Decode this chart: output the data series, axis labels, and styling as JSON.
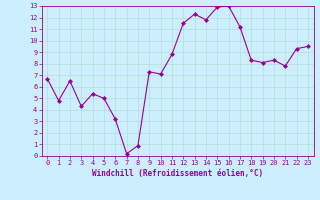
{
  "x_values": [
    0,
    1,
    2,
    3,
    4,
    5,
    6,
    7,
    8,
    9,
    10,
    11,
    12,
    13,
    14,
    15,
    16,
    17,
    18,
    19,
    20,
    21,
    22,
    23
  ],
  "y_values": [
    6.7,
    4.8,
    6.5,
    4.3,
    5.4,
    5.0,
    3.2,
    0.2,
    0.9,
    7.3,
    7.1,
    8.8,
    11.5,
    12.3,
    11.8,
    12.9,
    13.0,
    11.2,
    8.3,
    8.1,
    8.3,
    7.8,
    9.3,
    9.5
  ],
  "line_color": "#990099",
  "marker": "D",
  "marker_size": 2,
  "bg_color": "#cceeff",
  "grid_color": "#aaddcc",
  "xlabel": "Windchill (Refroidissement éolien,°C)",
  "xlabel_fontsize": 5.5,
  "tick_fontsize": 5,
  "ylim": [
    0,
    13
  ],
  "xlim": [
    -0.5,
    23.5
  ],
  "yticks": [
    0,
    1,
    2,
    3,
    4,
    5,
    6,
    7,
    8,
    9,
    10,
    11,
    12,
    13
  ],
  "xticks": [
    0,
    1,
    2,
    3,
    4,
    5,
    6,
    7,
    8,
    9,
    10,
    11,
    12,
    13,
    14,
    15,
    16,
    17,
    18,
    19,
    20,
    21,
    22,
    23
  ],
  "linewidth": 0.8
}
